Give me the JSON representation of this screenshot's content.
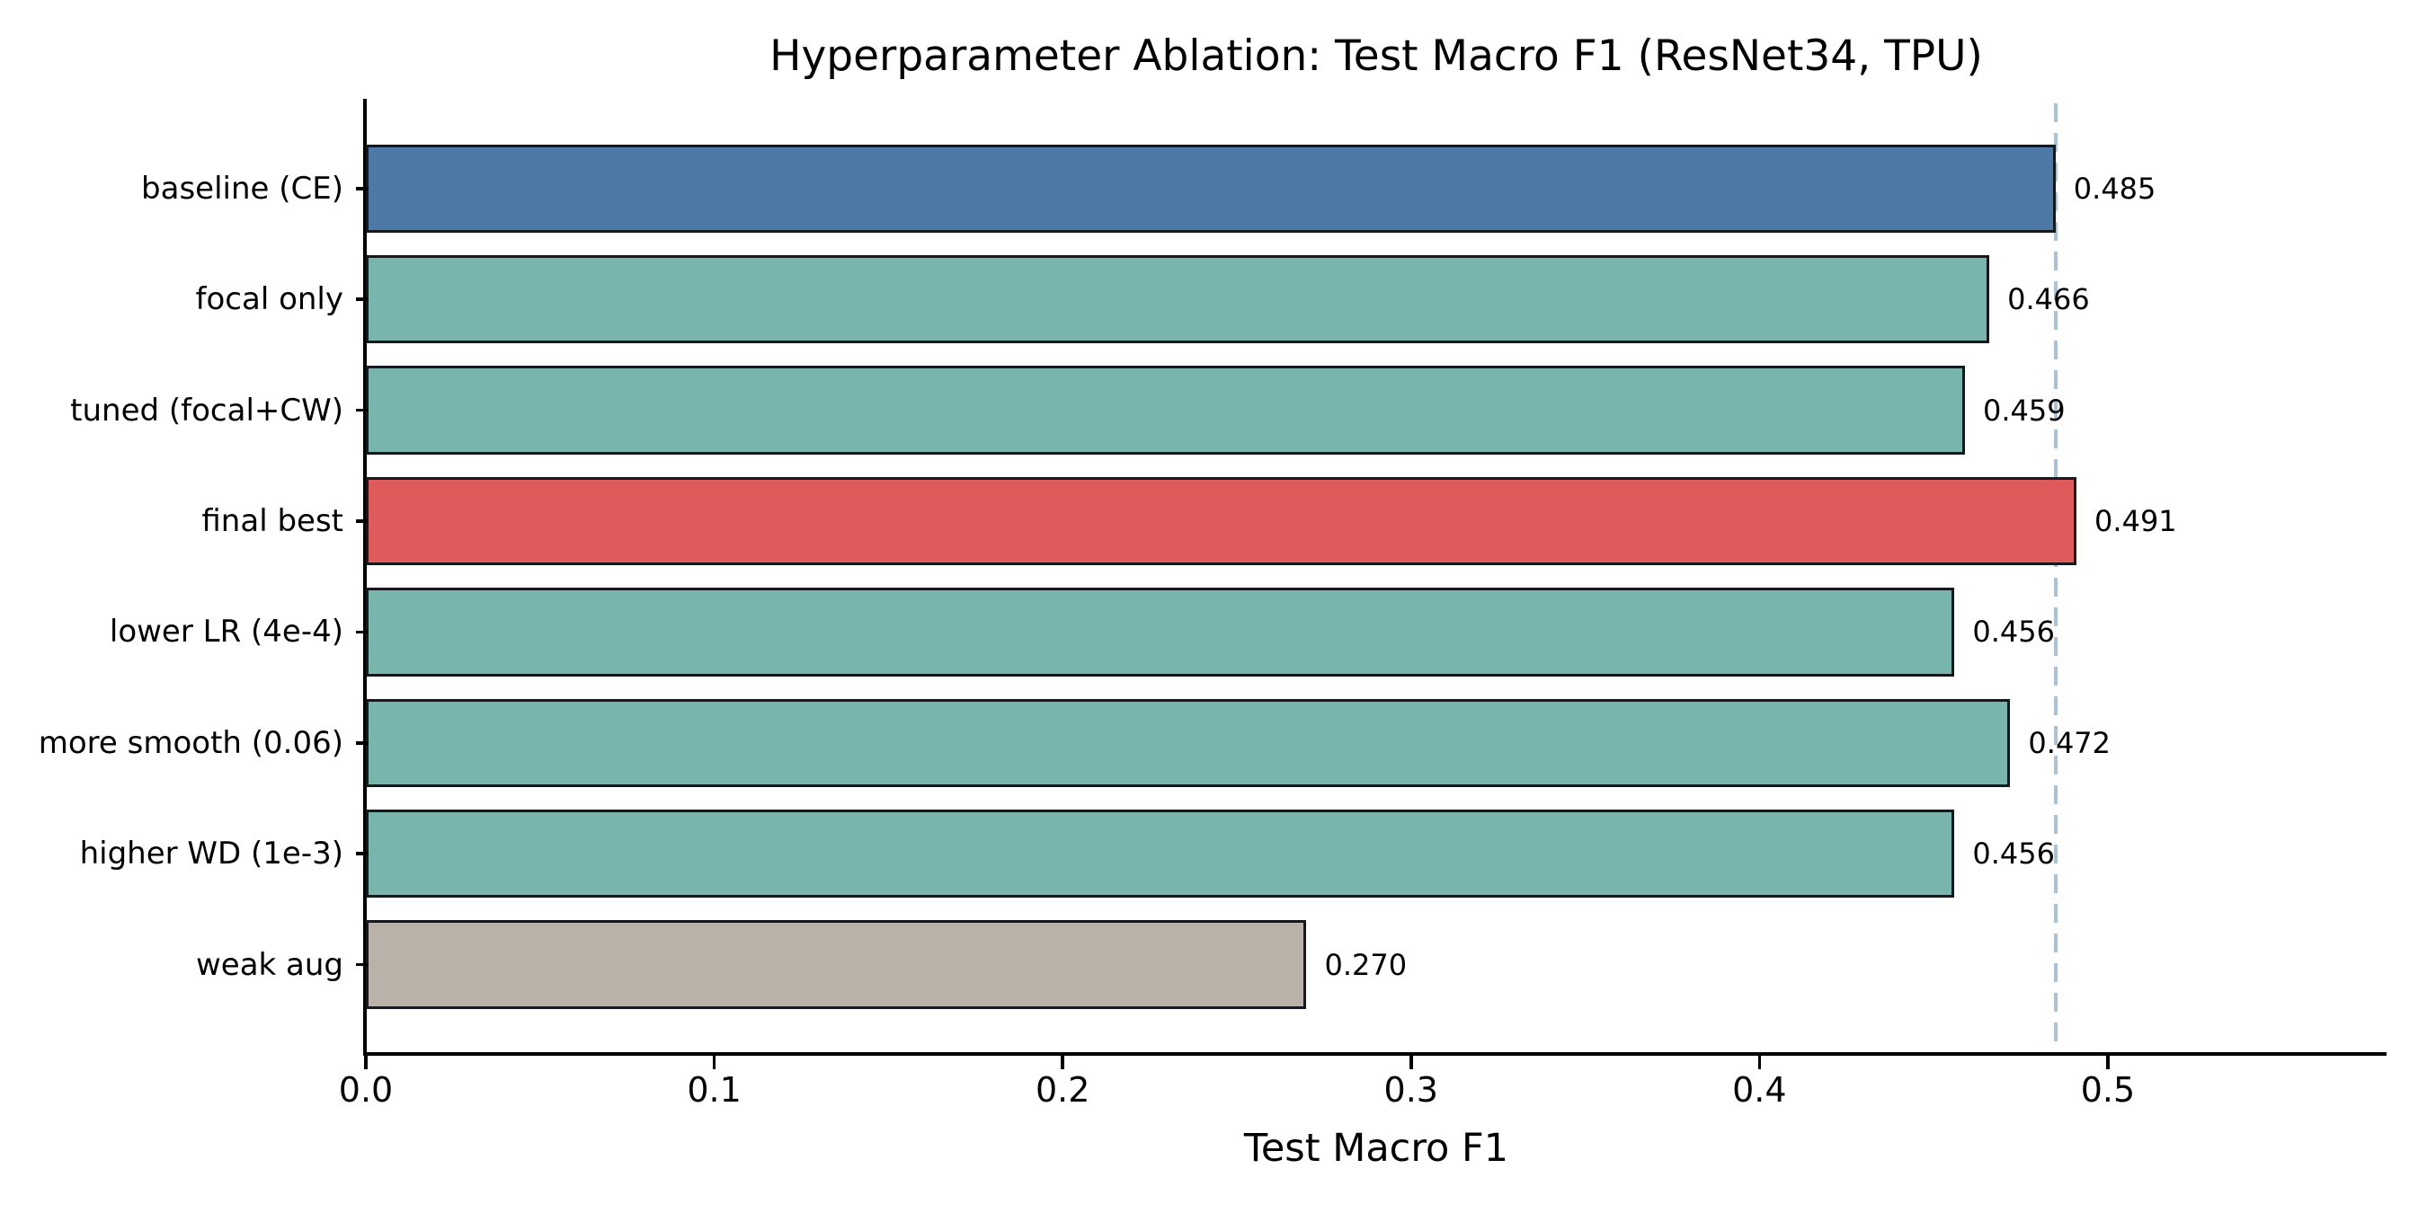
{
  "chart_data": {
    "type": "bar",
    "orientation": "horizontal",
    "title": "Hyperparameter Ablation: Test Macro F1 (ResNet34, TPU)",
    "xlabel": "Test Macro F1",
    "ylabel": "",
    "categories": [
      "baseline (CE)",
      "focal only",
      "tuned (focal+CW)",
      "final best",
      "lower LR (4e-4)",
      "more smooth (0.06)",
      "higher WD (1e-3)",
      "weak aug"
    ],
    "values": [
      0.485,
      0.466,
      0.459,
      0.491,
      0.456,
      0.472,
      0.456,
      0.27
    ],
    "value_labels": [
      "0.485",
      "0.466",
      "0.459",
      "0.491",
      "0.456",
      "0.472",
      "0.456",
      "0.270"
    ],
    "bar_colors": [
      "#4D79A7",
      "#77B5AD",
      "#77B5AD",
      "#DF5A5A",
      "#77B5AD",
      "#77B5AD",
      "#77B5AD",
      "#BAB1A8"
    ],
    "bar_edge_color": "#15191e",
    "x_ticks": [
      "0.0",
      "0.1",
      "0.2",
      "0.3",
      "0.4",
      "0.5"
    ],
    "x_tick_values": [
      0.0,
      0.1,
      0.2,
      0.3,
      0.4,
      0.5
    ],
    "xlim": [
      0.0,
      0.58
    ],
    "grid": false,
    "legend": null,
    "reference_line": {
      "value": 0.485,
      "style": "dashed",
      "color": "#A9C2DC"
    }
  }
}
